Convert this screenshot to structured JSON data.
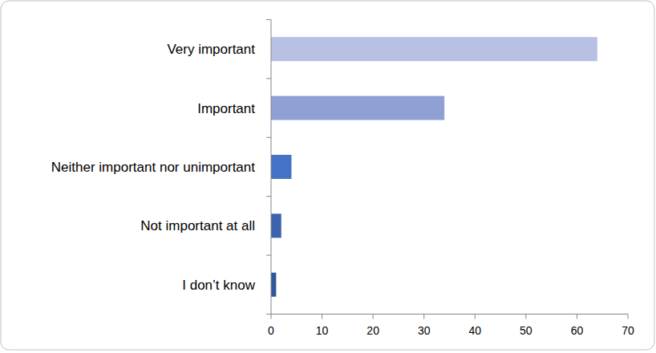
{
  "chart_data": {
    "type": "bar",
    "orientation": "horizontal",
    "categories": [
      "Very important",
      "Important",
      "Neither important nor unimportant",
      "Not important at all",
      "I don’t know"
    ],
    "values": [
      64,
      34,
      4,
      2,
      1
    ],
    "colors": [
      "#b8c0e4",
      "#8fa1d4",
      "#4472c4",
      "#3a62ad",
      "#30569b"
    ],
    "xlim": [
      0,
      70
    ],
    "xticks": [
      0,
      10,
      20,
      30,
      40,
      50,
      60,
      70
    ],
    "grid": false
  }
}
